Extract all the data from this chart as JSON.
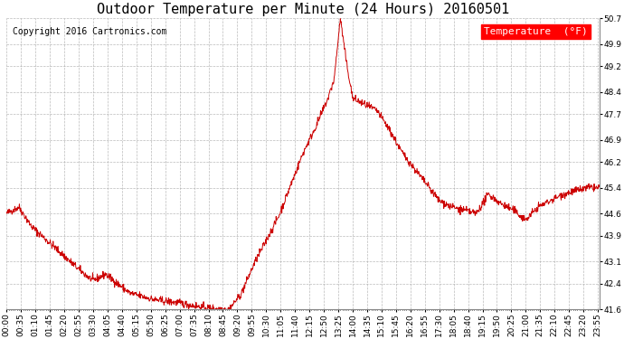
{
  "title": "Outdoor Temperature per Minute (24 Hours) 20160501",
  "copyright": "Copyright 2016 Cartronics.com",
  "legend_label": "Temperature  (°F)",
  "line_color": "#cc0000",
  "background_color": "#ffffff",
  "plot_bg_color": "#ffffff",
  "grid_color": "#aaaaaa",
  "ylim": [
    41.6,
    50.7
  ],
  "yticks": [
    41.6,
    42.4,
    43.1,
    43.9,
    44.6,
    45.4,
    46.2,
    46.9,
    47.7,
    48.4,
    49.2,
    49.9,
    50.7
  ],
  "title_fontsize": 11,
  "copyright_fontsize": 7,
  "tick_fontsize": 6.5,
  "legend_fontsize": 8
}
